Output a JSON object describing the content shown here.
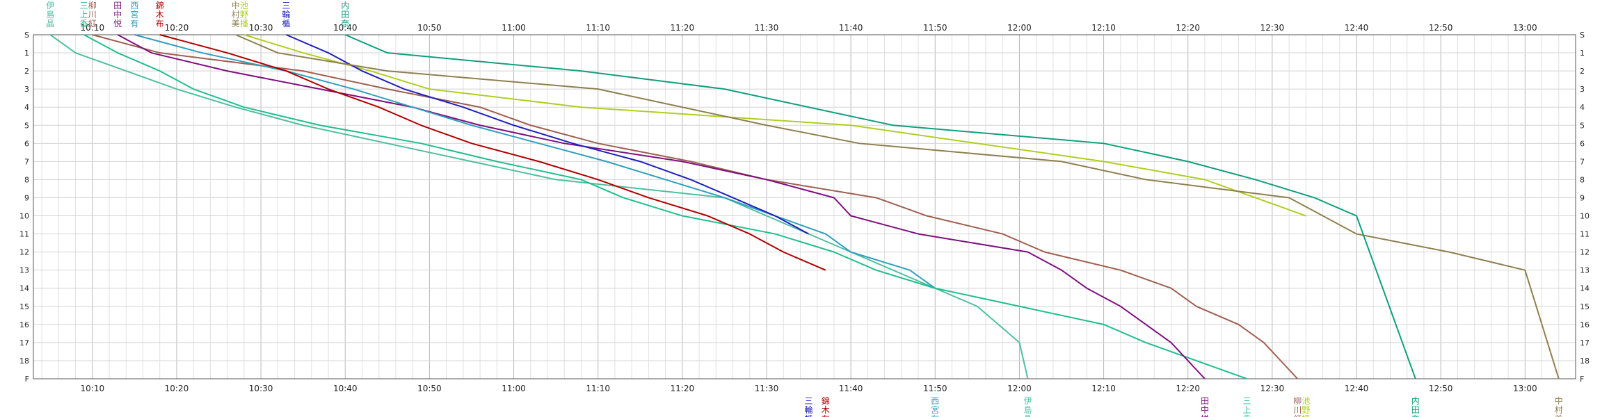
{
  "chart_data": {
    "type": "line",
    "title": "",
    "xlabel": "",
    "ylabel": "",
    "xlim": [
      "10:03",
      "13:06"
    ],
    "ylim": [
      0,
      18
    ],
    "x_ticks": [
      "10:10",
      "10:20",
      "10:30",
      "10:40",
      "10:50",
      "11:00",
      "11:10",
      "11:20",
      "11:30",
      "11:40",
      "11:50",
      "12:00",
      "12:10",
      "12:20",
      "12:30",
      "12:40",
      "12:50",
      "13:00"
    ],
    "y_ticks": [
      "S",
      "1",
      "2",
      "3",
      "4",
      "5",
      "6",
      "7",
      "8",
      "9",
      "10",
      "11",
      "12",
      "13",
      "14",
      "15",
      "16",
      "17",
      "18",
      "F"
    ],
    "series": [
      {
        "name": "伊島晶",
        "color": "#4fbf9f",
        "points": [
          [
            "10:05",
            "S"
          ],
          [
            "10:08",
            "1"
          ],
          [
            "10:14",
            "2"
          ],
          [
            "10:20",
            "3"
          ],
          [
            "10:27",
            "4"
          ],
          [
            "10:35",
            "5"
          ],
          [
            "10:45",
            "6"
          ],
          [
            "10:55",
            "7"
          ],
          [
            "11:05",
            "8"
          ],
          [
            "11:25",
            "9"
          ],
          [
            "11:40",
            "12"
          ],
          [
            "11:55",
            "15"
          ],
          [
            "12:00",
            "17"
          ],
          [
            "12:01",
            "F"
          ]
        ]
      },
      {
        "name": "三上香",
        "color": "#1fbf8f",
        "points": [
          [
            "10:09",
            "S"
          ],
          [
            "10:13",
            "1"
          ],
          [
            "10:18",
            "2"
          ],
          [
            "10:22",
            "3"
          ],
          [
            "10:28",
            "4"
          ],
          [
            "10:37",
            "5"
          ],
          [
            "10:49",
            "6"
          ],
          [
            "10:58",
            "7"
          ],
          [
            "11:08",
            "8"
          ],
          [
            "11:13",
            "9"
          ],
          [
            "11:20",
            "10"
          ],
          [
            "11:31",
            "11"
          ],
          [
            "11:38",
            "12"
          ],
          [
            "11:43",
            "13"
          ],
          [
            "11:50",
            "14"
          ],
          [
            "12:00",
            "15"
          ],
          [
            "12:10",
            "16"
          ],
          [
            "12:15",
            "17"
          ],
          [
            "12:27",
            "F"
          ]
        ]
      },
      {
        "name": "柳川紅",
        "color": "#9f5f4f",
        "points": [
          [
            "10:10",
            "S"
          ],
          [
            "10:18",
            "1"
          ],
          [
            "10:35",
            "2"
          ],
          [
            "10:45",
            "3"
          ],
          [
            "10:56",
            "4"
          ],
          [
            "11:02",
            "5"
          ],
          [
            "11:10",
            "6"
          ],
          [
            "11:21",
            "7"
          ],
          [
            "11:30",
            "8"
          ],
          [
            "11:43",
            "9"
          ],
          [
            "11:49",
            "10"
          ],
          [
            "11:58",
            "11"
          ],
          [
            "12:03",
            "12"
          ],
          [
            "12:12",
            "13"
          ],
          [
            "12:18",
            "14"
          ],
          [
            "12:21",
            "15"
          ],
          [
            "12:26",
            "16"
          ],
          [
            "12:29",
            "17"
          ],
          [
            "12:33",
            "F"
          ]
        ]
      },
      {
        "name": "田中悦",
        "color": "#7f0f7f",
        "points": [
          [
            "10:13",
            "S"
          ],
          [
            "10:17",
            "1"
          ],
          [
            "10:26",
            "2"
          ],
          [
            "10:37",
            "3"
          ],
          [
            "10:48",
            "4"
          ],
          [
            "10:56",
            "5"
          ],
          [
            "11:06",
            "6"
          ],
          [
            "11:20",
            "7"
          ],
          [
            "11:30",
            "8"
          ],
          [
            "11:38",
            "9"
          ],
          [
            "11:40",
            "10"
          ],
          [
            "11:48",
            "11"
          ],
          [
            "12:01",
            "12"
          ],
          [
            "12:05",
            "13"
          ],
          [
            "12:08",
            "14"
          ],
          [
            "12:12",
            "15"
          ],
          [
            "12:15",
            "16"
          ],
          [
            "12:18",
            "17"
          ],
          [
            "12:22",
            "F"
          ]
        ]
      },
      {
        "name": "西宮有",
        "color": "#2f9fbf",
        "points": [
          [
            "10:15",
            "S"
          ],
          [
            "10:23",
            "1"
          ],
          [
            "10:33",
            "2"
          ],
          [
            "10:41",
            "3"
          ],
          [
            "10:48",
            "4"
          ],
          [
            "10:55",
            "5"
          ],
          [
            "11:03",
            "6"
          ],
          [
            "11:11",
            "7"
          ],
          [
            "11:18",
            "8"
          ],
          [
            "11:25",
            "9"
          ],
          [
            "11:31",
            "10"
          ],
          [
            "11:37",
            "11"
          ],
          [
            "11:40",
            "12"
          ],
          [
            "11:47",
            "13"
          ],
          [
            "11:50",
            "14"
          ]
        ]
      },
      {
        "name": "錦木布",
        "color": "#af0000",
        "points": [
          [
            "10:18",
            "S"
          ],
          [
            "10:26",
            "1"
          ],
          [
            "10:33",
            "2"
          ],
          [
            "10:38",
            "3"
          ],
          [
            "10:44",
            "4"
          ],
          [
            "10:49",
            "5"
          ],
          [
            "10:55",
            "6"
          ],
          [
            "11:03",
            "7"
          ],
          [
            "11:10",
            "8"
          ],
          [
            "11:16",
            "9"
          ],
          [
            "11:23",
            "10"
          ],
          [
            "11:28",
            "11"
          ],
          [
            "11:32",
            "12"
          ],
          [
            "11:37",
            "13"
          ]
        ]
      },
      {
        "name": "池野播",
        "color": "#afcf1f",
        "points": [
          [
            "10:28",
            "S"
          ],
          [
            "10:35",
            "1"
          ],
          [
            "10:43",
            "2"
          ],
          [
            "10:50",
            "3"
          ],
          [
            "11:08",
            "4"
          ],
          [
            "11:40",
            "5"
          ],
          [
            "11:55",
            "6"
          ],
          [
            "12:10",
            "7"
          ],
          [
            "12:22",
            "8"
          ],
          [
            "12:28",
            "9"
          ],
          [
            "12:34",
            "10"
          ]
        ]
      },
      {
        "name": "三輪楯",
        "color": "#1f1fbf",
        "points": [
          [
            "10:33",
            "S"
          ],
          [
            "10:38",
            "1"
          ],
          [
            "10:42",
            "2"
          ],
          [
            "10:47",
            "3"
          ],
          [
            "10:54",
            "4"
          ],
          [
            "11:00",
            "5"
          ],
          [
            "11:07",
            "6"
          ],
          [
            "11:15",
            "7"
          ],
          [
            "11:21",
            "8"
          ],
          [
            "11:26",
            "9"
          ],
          [
            "11:31",
            "10"
          ],
          [
            "11:35",
            "11"
          ]
        ]
      },
      {
        "name": "中村美",
        "color": "#8f7f4f",
        "points": [
          [
            "10:27",
            "S"
          ],
          [
            "10:32",
            "1"
          ],
          [
            "10:45",
            "2"
          ],
          [
            "11:10",
            "3"
          ],
          [
            "11:20",
            "4"
          ],
          [
            "11:30",
            "5"
          ],
          [
            "11:41",
            "6"
          ],
          [
            "12:05",
            "7"
          ],
          [
            "12:15",
            "8"
          ],
          [
            "12:32",
            "9"
          ],
          [
            "12:36",
            "10"
          ],
          [
            "12:40",
            "11"
          ],
          [
            "12:51",
            "12"
          ],
          [
            "13:00",
            "13"
          ],
          [
            "13:04",
            "F"
          ]
        ]
      },
      {
        "name": "内田奈",
        "color": "#0f9f7f",
        "points": [
          [
            "10:40",
            "S"
          ],
          [
            "10:45",
            "1"
          ],
          [
            "11:08",
            "2"
          ],
          [
            "11:25",
            "3"
          ],
          [
            "11:35",
            "4"
          ],
          [
            "11:45",
            "5"
          ],
          [
            "12:10",
            "6"
          ],
          [
            "12:20",
            "7"
          ],
          [
            "12:28",
            "8"
          ],
          [
            "12:35",
            "9"
          ],
          [
            "12:40",
            "10"
          ],
          [
            "12:47",
            "F"
          ]
        ]
      }
    ]
  }
}
